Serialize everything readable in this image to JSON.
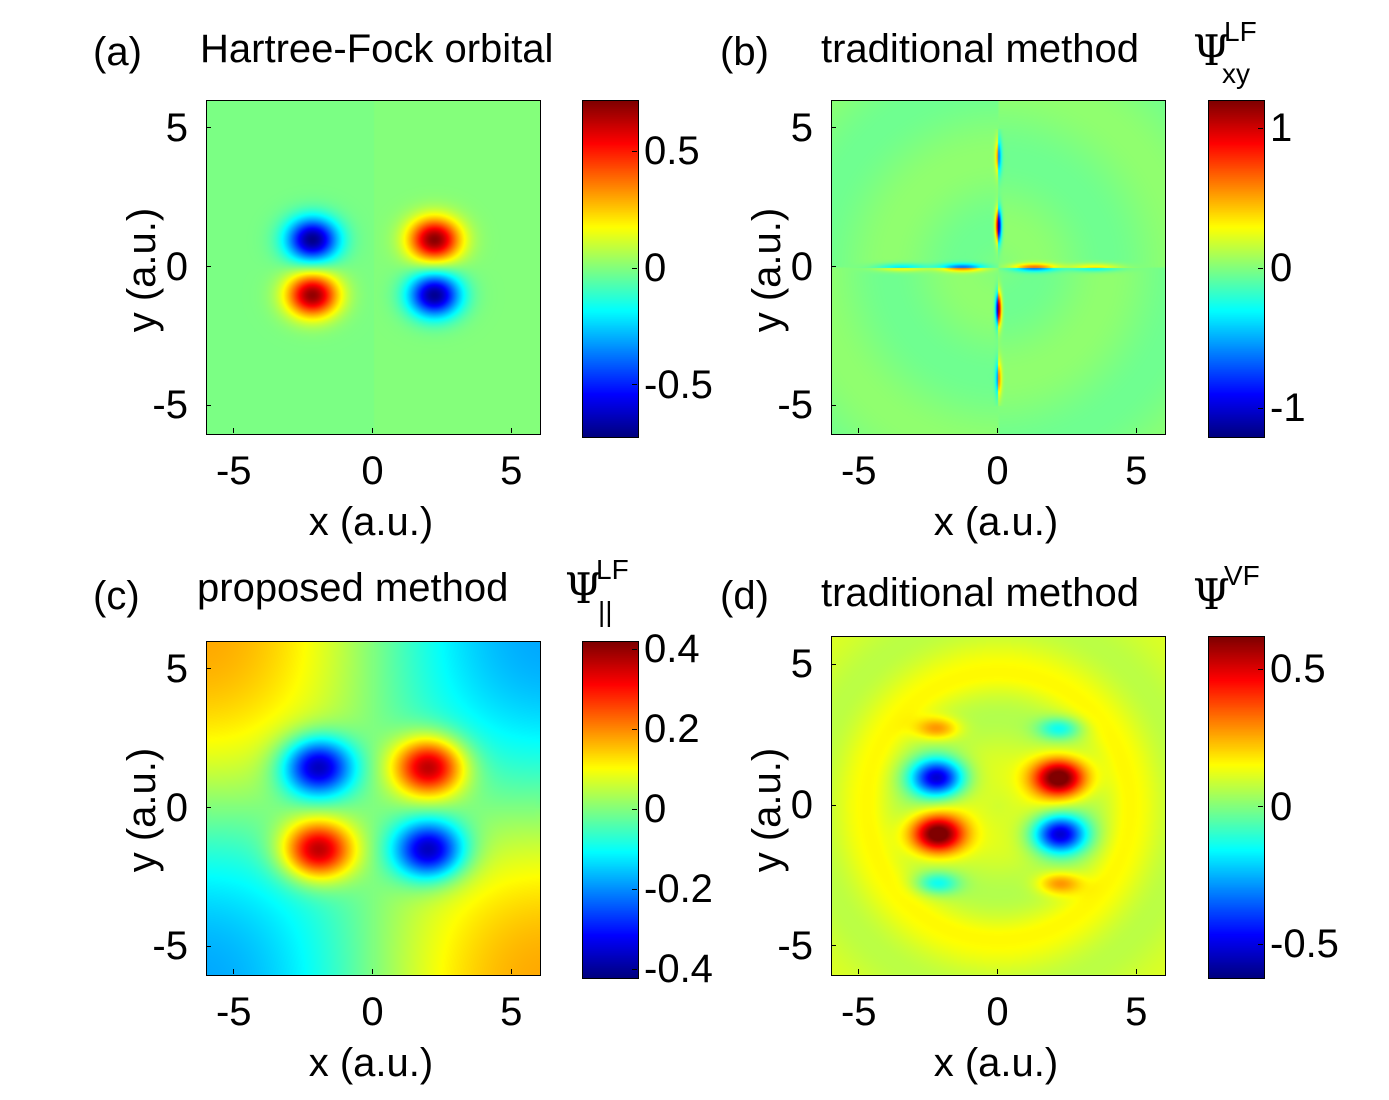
{
  "chart_data": [
    {
      "type": "heatmap",
      "panel_label": "(a)",
      "title": "Hartree-Fock orbital",
      "symbol": "",
      "symbol_sup": "",
      "symbol_sub": "",
      "xlabel": "x (a.u.)",
      "ylabel": "y (a.u.)",
      "xlim": [
        -6,
        6
      ],
      "ylim": [
        -6,
        6
      ],
      "xticks": [
        -5,
        0,
        5
      ],
      "yticks": [
        -5,
        0,
        5
      ],
      "colormap": "jet",
      "clim": [
        -0.72,
        0.72
      ],
      "cbar_ticks": [
        0.5,
        0,
        -0.5
      ],
      "pattern": "orbital",
      "lobes": [
        {
          "x": -2.2,
          "y": 1.0,
          "value": -0.7
        },
        {
          "x": -2.2,
          "y": -1.0,
          "value": 0.7
        },
        {
          "x": 2.2,
          "y": 1.0,
          "value": 0.7
        },
        {
          "x": 2.2,
          "y": -1.0,
          "value": -0.7
        }
      ]
    },
    {
      "type": "heatmap",
      "panel_label": "(b)",
      "title": "traditional method",
      "symbol": "Ψ",
      "symbol_sup": "LF",
      "symbol_sub": "xy",
      "xlabel": "x (a.u.)",
      "ylabel": "y (a.u.)",
      "xlim": [
        -6,
        6
      ],
      "ylim": [
        -6,
        6
      ],
      "xticks": [
        -5,
        0,
        5
      ],
      "yticks": [
        -5,
        0,
        5
      ],
      "colormap": "jet",
      "clim": [
        -1.2,
        1.2
      ],
      "cbar_ticks": [
        1,
        0,
        -1
      ],
      "pattern": "cross"
    },
    {
      "type": "heatmap",
      "panel_label": "(c)",
      "title": "proposed method",
      "symbol": "Ψ",
      "symbol_sup": "LF",
      "symbol_sub": "||",
      "xlabel": "x (a.u.)",
      "ylabel": "y (a.u.)",
      "xlim": [
        -6,
        6
      ],
      "ylim": [
        -6,
        6
      ],
      "xticks": [
        -5,
        0,
        5
      ],
      "yticks": [
        -5,
        0,
        5
      ],
      "colormap": "jet",
      "clim": [
        -0.42,
        0.42
      ],
      "cbar_ticks": [
        0.4,
        0.2,
        0,
        -0.2,
        -0.4
      ],
      "pattern": "smooth",
      "lobes": [
        {
          "x": -2.0,
          "y": 1.5,
          "value": -0.4
        },
        {
          "x": -2.0,
          "y": -1.5,
          "value": 0.4
        },
        {
          "x": 2.0,
          "y": 1.5,
          "value": 0.4
        },
        {
          "x": 2.0,
          "y": -1.5,
          "value": -0.4
        }
      ]
    },
    {
      "type": "heatmap",
      "panel_label": "(d)",
      "title": "traditional method",
      "symbol": "Ψ",
      "symbol_sup": "VF",
      "symbol_sub": "",
      "xlabel": "x (a.u.)",
      "ylabel": "y (a.u.)",
      "xlim": [
        -6,
        6
      ],
      "ylim": [
        -6,
        6
      ],
      "xticks": [
        -5,
        0,
        5
      ],
      "yticks": [
        -5,
        0,
        5
      ],
      "colormap": "jet",
      "clim": [
        -0.62,
        0.62
      ],
      "cbar_ticks": [
        0.5,
        0,
        -0.5
      ],
      "pattern": "rings",
      "lobes": [
        {
          "x": -2.2,
          "y": 1.0,
          "value": -0.6
        },
        {
          "x": -2.2,
          "y": -1.0,
          "value": 0.6
        },
        {
          "x": 2.2,
          "y": 1.0,
          "value": 0.6
        },
        {
          "x": 2.2,
          "y": -1.0,
          "value": -0.6
        }
      ]
    }
  ]
}
